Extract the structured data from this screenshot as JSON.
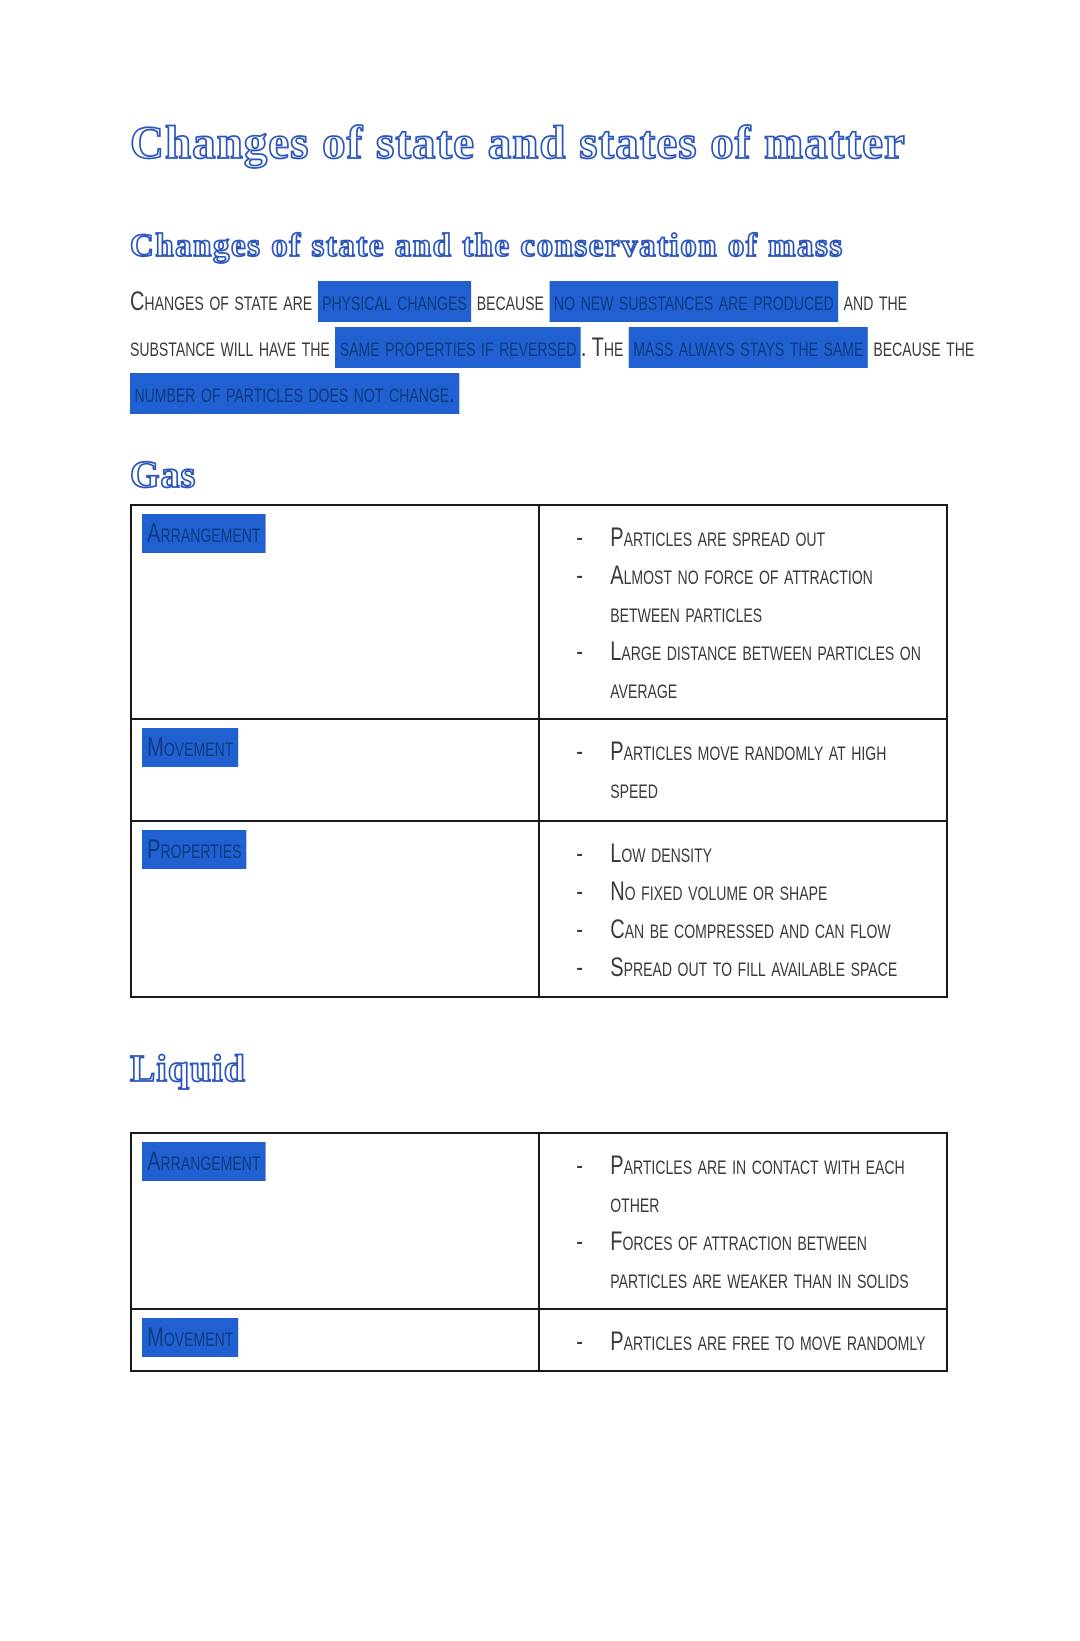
{
  "document": {
    "title": "Changes of state and states of matter",
    "bullet_char": "-",
    "conservation_section": {
      "heading": "Changes of state and the conservation of mass",
      "paragraph_lines": [
        [
          {
            "text": "Changes of state are ",
            "highlight": false
          },
          {
            "text": "physical changes",
            "highlight": true
          },
          {
            "text": " because ",
            "highlight": false
          },
          {
            "text": "no new substances are produced",
            "highlight": true
          },
          {
            "text": " and the",
            "highlight": false
          }
        ],
        [
          {
            "text": "substance will have the ",
            "highlight": false
          },
          {
            "text": "same properties if reversed",
            "highlight": true
          },
          {
            "text": ". The ",
            "highlight": false
          },
          {
            "text": "mass always stays the same",
            "highlight": true
          },
          {
            "text": " because the",
            "highlight": false
          }
        ],
        [
          {
            "text": "number of particles does not change.",
            "highlight": true
          }
        ]
      ]
    },
    "gas_section": {
      "heading": "Gas",
      "table_rows": [
        {
          "label": "Arrangement",
          "bullets": [
            "Particles are spread out",
            "Almost no force of attraction between particles",
            "Large distance between particles on average"
          ]
        },
        {
          "label": "Movement",
          "bullets": [
            "Particles move randomly at high speed"
          ]
        },
        {
          "label": "Properties",
          "bullets": [
            "Low density",
            "No fixed volume or shape",
            "Can be compressed and can flow",
            "Spread out to fill available space"
          ]
        }
      ]
    },
    "liquid_section": {
      "heading": "Liquid",
      "table_rows": [
        {
          "label": "Arrangement",
          "bullets": [
            "Particles are in contact with each other",
            "Forces of attraction between particles are weaker than in solids"
          ]
        },
        {
          "label": "Movement",
          "bullets": [
            "Particles are free to move randomly"
          ]
        }
      ]
    }
  },
  "colors": {
    "highlight_background": "#2060d0",
    "highlight_text": "#0e3a7e",
    "heading_blue": "#2b55bd",
    "body_text": "#3a3a3a",
    "table_border": "#1a1a1a"
  }
}
